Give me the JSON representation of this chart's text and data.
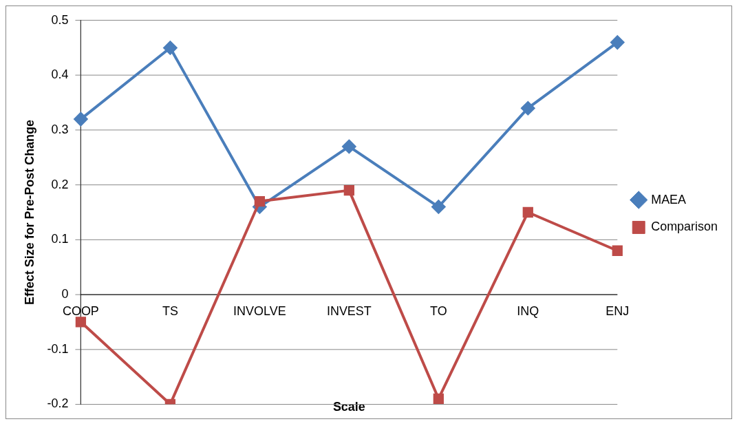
{
  "chart_data": {
    "type": "line",
    "xlabel": "Scale",
    "ylabel": "Effect Size for Pre-Post Change",
    "categories": [
      "COOP",
      "TS",
      "INVOLVE",
      "INVEST",
      "TO",
      "INQ",
      "ENJ"
    ],
    "series": [
      {
        "name": "MAEA",
        "color": "#4a7ebb",
        "marker": "diamond",
        "values": [
          0.32,
          0.45,
          0.16,
          0.27,
          0.16,
          0.34,
          0.46
        ]
      },
      {
        "name": "Comparison",
        "color": "#be4b48",
        "marker": "square",
        "values": [
          -0.05,
          -0.2,
          0.17,
          0.19,
          -0.19,
          0.15,
          0.08
        ]
      }
    ],
    "ylim": [
      -0.2,
      0.5
    ],
    "yticks": [
      -0.2,
      -0.1,
      0,
      0.1,
      0.2,
      0.3,
      0.4,
      0.5
    ],
    "grid": "y",
    "legend": "right",
    "line_style": "solid"
  }
}
